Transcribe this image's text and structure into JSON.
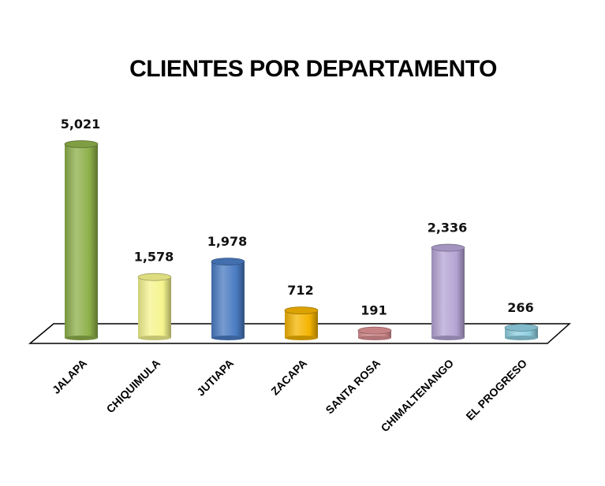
{
  "chart_data": {
    "type": "bar",
    "title": "CLIENTES POR DEPARTAMENTO",
    "xlabel": "",
    "ylabel": "",
    "categories": [
      "JALAPA",
      "CHIQUIMULA",
      "JUTIAPA",
      "ZACAPA",
      "SANTA ROSA",
      "CHIMALTENANGO",
      "EL PROGRESO"
    ],
    "values": [
      5021,
      1578,
      1978,
      712,
      191,
      2336,
      266
    ],
    "value_labels": [
      "5,021",
      "1,578",
      "1,978",
      "712",
      "191",
      "2,336",
      "266"
    ],
    "colors": [
      "#8db04a",
      "#f5f48e",
      "#4a7bc2",
      "#f4b400",
      "#dc9194",
      "#b4a4d4",
      "#8fcfe0"
    ],
    "ylim": [
      0,
      5021
    ],
    "grid": false,
    "legend": "none",
    "style": "3d-cylinder"
  }
}
